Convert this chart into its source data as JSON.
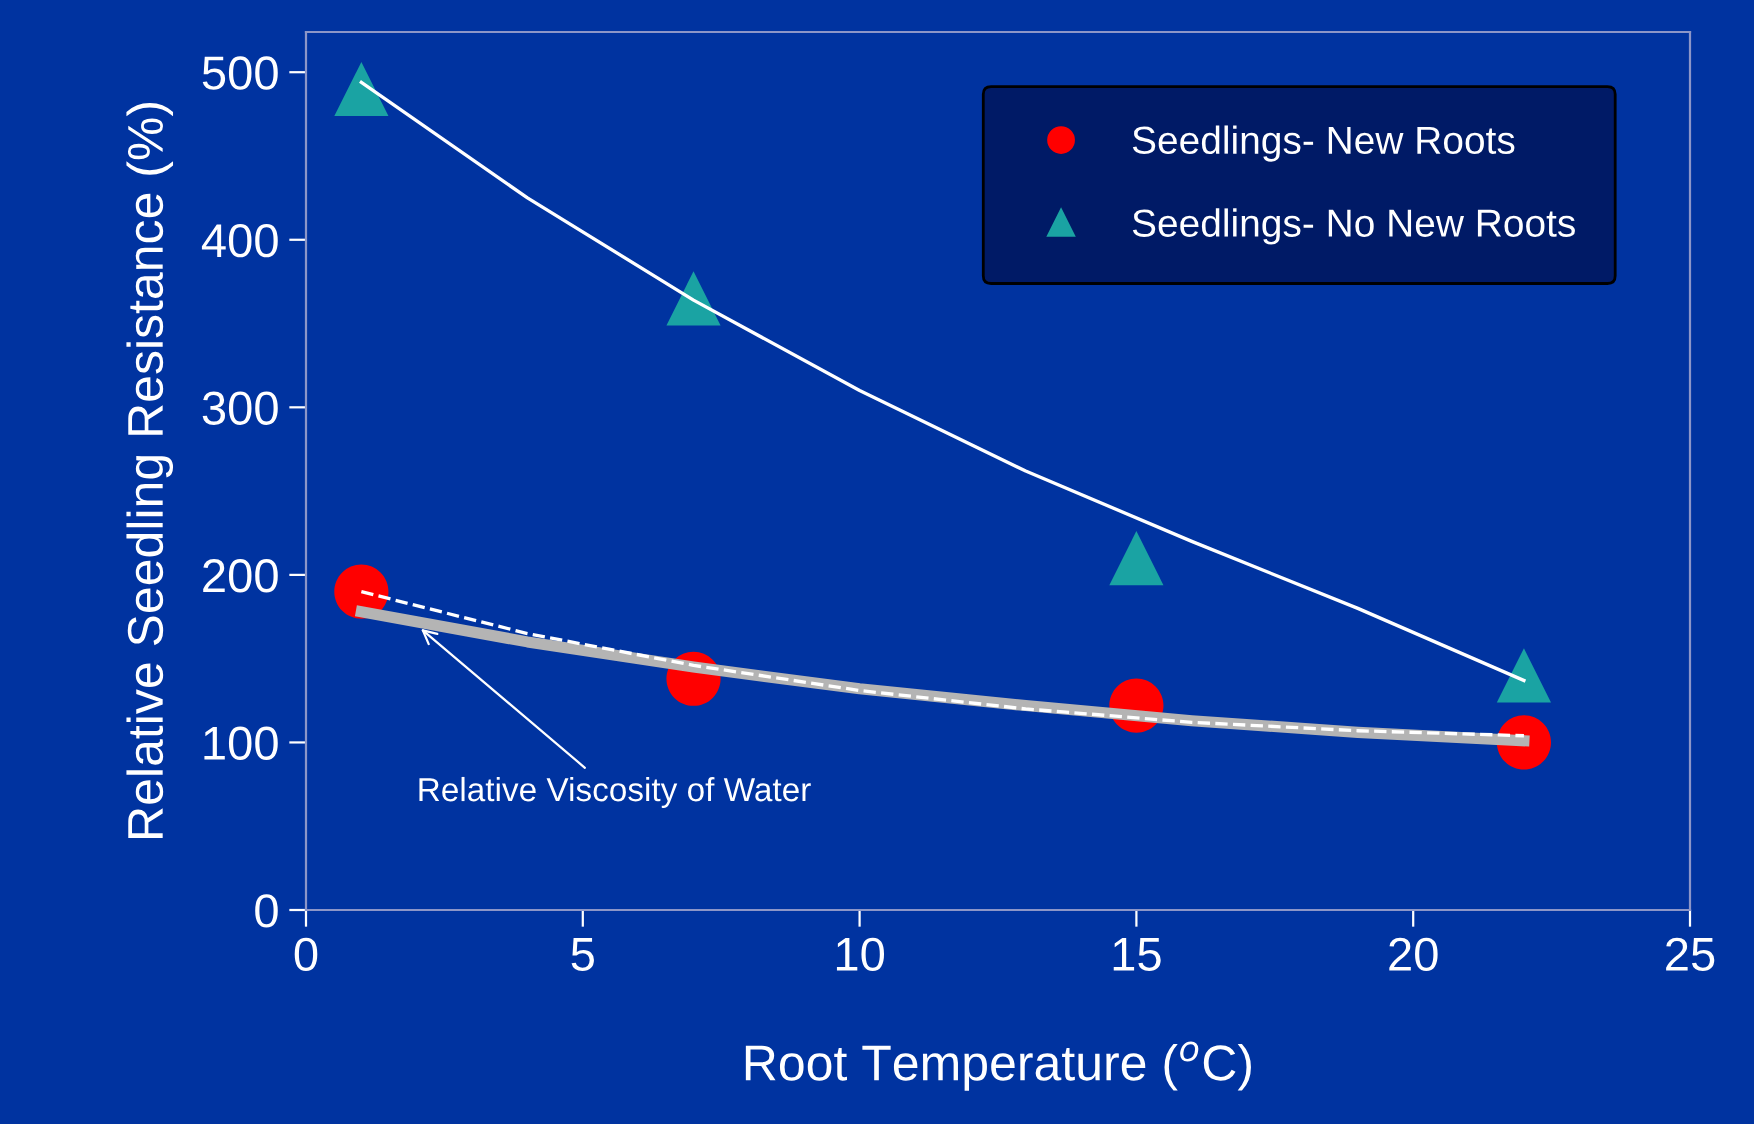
{
  "chart_data": {
    "type": "scatter",
    "xlabel": "Root Temperature ($^{o}$C)",
    "ylabel": "Relative Seedling Resistance (%)",
    "xlim": [
      0,
      25
    ],
    "xticks": [
      0,
      5,
      10,
      15,
      20,
      25
    ],
    "ylim": [
      0,
      524
    ],
    "yticks": [
      0,
      100,
      200,
      300,
      400,
      500
    ],
    "grid": false,
    "legend": "top right",
    "series": [
      {
        "type": "line",
        "color": "#ffffff",
        "line_style": "solid",
        "marker": "none",
        "x": [
          1,
          4,
          7,
          10,
          13,
          16,
          19,
          22
        ],
        "values": [
          494,
          425,
          364,
          310,
          262,
          220,
          180,
          137
        ]
      },
      {
        "type": "line",
        "color": "#ffffff",
        "line_style": "dashed",
        "marker": "none",
        "x": [
          1,
          4,
          7,
          10,
          13,
          16,
          19,
          22
        ],
        "values": [
          190,
          165,
          146,
          131,
          120,
          112,
          107,
          104
        ]
      },
      {
        "type": "line",
        "color": "#b4b4b4",
        "line_style": "solid",
        "marker": "none",
        "x": [
          1,
          4,
          7,
          10,
          13,
          16,
          19,
          22
        ],
        "values": [
          178,
          160,
          145,
          132,
          122,
          113,
          106,
          101
        ]
      },
      {
        "name": "Seedlings- New Roots",
        "color": "#ff0000",
        "marker": "circle",
        "x": [
          1,
          7,
          15,
          22
        ],
        "values": [
          190,
          138,
          122,
          100
        ]
      },
      {
        "name": "Seedlings- No New Roots",
        "color": "#1aa3a3",
        "marker": "triangle",
        "x": [
          1,
          7,
          15,
          22
        ],
        "values": [
          490,
          365,
          210,
          140
        ]
      }
    ],
    "annotations": [
      {
        "text": "Relative Viscosity of Water",
        "x": 2,
        "y": 170
      }
    ]
  }
}
